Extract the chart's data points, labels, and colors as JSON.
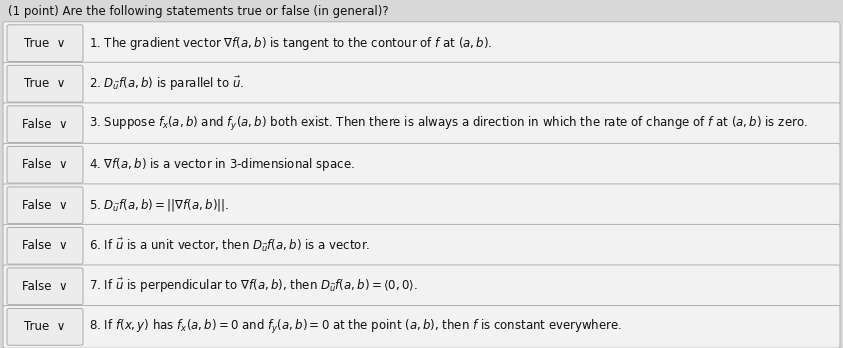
{
  "title": "(1 point) Are the following statements true or false (in general)?",
  "rows": [
    {
      "answer": "True",
      "text": "1. The gradient vector $\\nabla f(a, b)$ is tangent to the contour of $f$ at $(a, b)$."
    },
    {
      "answer": "True",
      "text": "2. $D_{\\vec{u}}f(a, b)$ is parallel to $\\vec{u}$."
    },
    {
      "answer": "False",
      "text": "3. Suppose $f_x(a, b)$ and $f_y(a, b)$ both exist. Then there is always a direction in which the rate of change of $f$ at $(a, b)$ is zero."
    },
    {
      "answer": "False",
      "text": "4. $\\nabla f(a, b)$ is a vector in 3-dimensional space."
    },
    {
      "answer": "False",
      "text": "5. $D_{\\vec{u}}f(a, b) = ||\\nabla f(a, b)||$."
    },
    {
      "answer": "False",
      "text": "6. If $\\vec{u}$ is a unit vector, then $D_{\\vec{u}}f(a, b)$ is a vector."
    },
    {
      "answer": "False",
      "text": "7. If $\\vec{u}$ is perpendicular to $\\nabla f(a, b)$, then $D_{\\vec{u}}f(a, b) = \\langle 0, 0\\rangle$."
    },
    {
      "answer": "True",
      "text": "8. If $f(x, y)$ has $f_x(a, b) = 0$ and $f_y(a, b) = 0$ at the point $(a, b)$, then $f$ is constant everywhere."
    }
  ],
  "bg_color": "#d8d8d8",
  "box_color": "#f2f2f2",
  "ans_box_color": "#ececec",
  "box_edge_color": "#b0b0b0",
  "ans_edge_color": "#aaaaaa",
  "text_color": "#111111",
  "title_fontsize": 8.5,
  "answer_fontsize": 8.5,
  "row_fontsize": 8.5,
  "fig_width": 8.43,
  "fig_height": 3.48,
  "dpi": 100
}
